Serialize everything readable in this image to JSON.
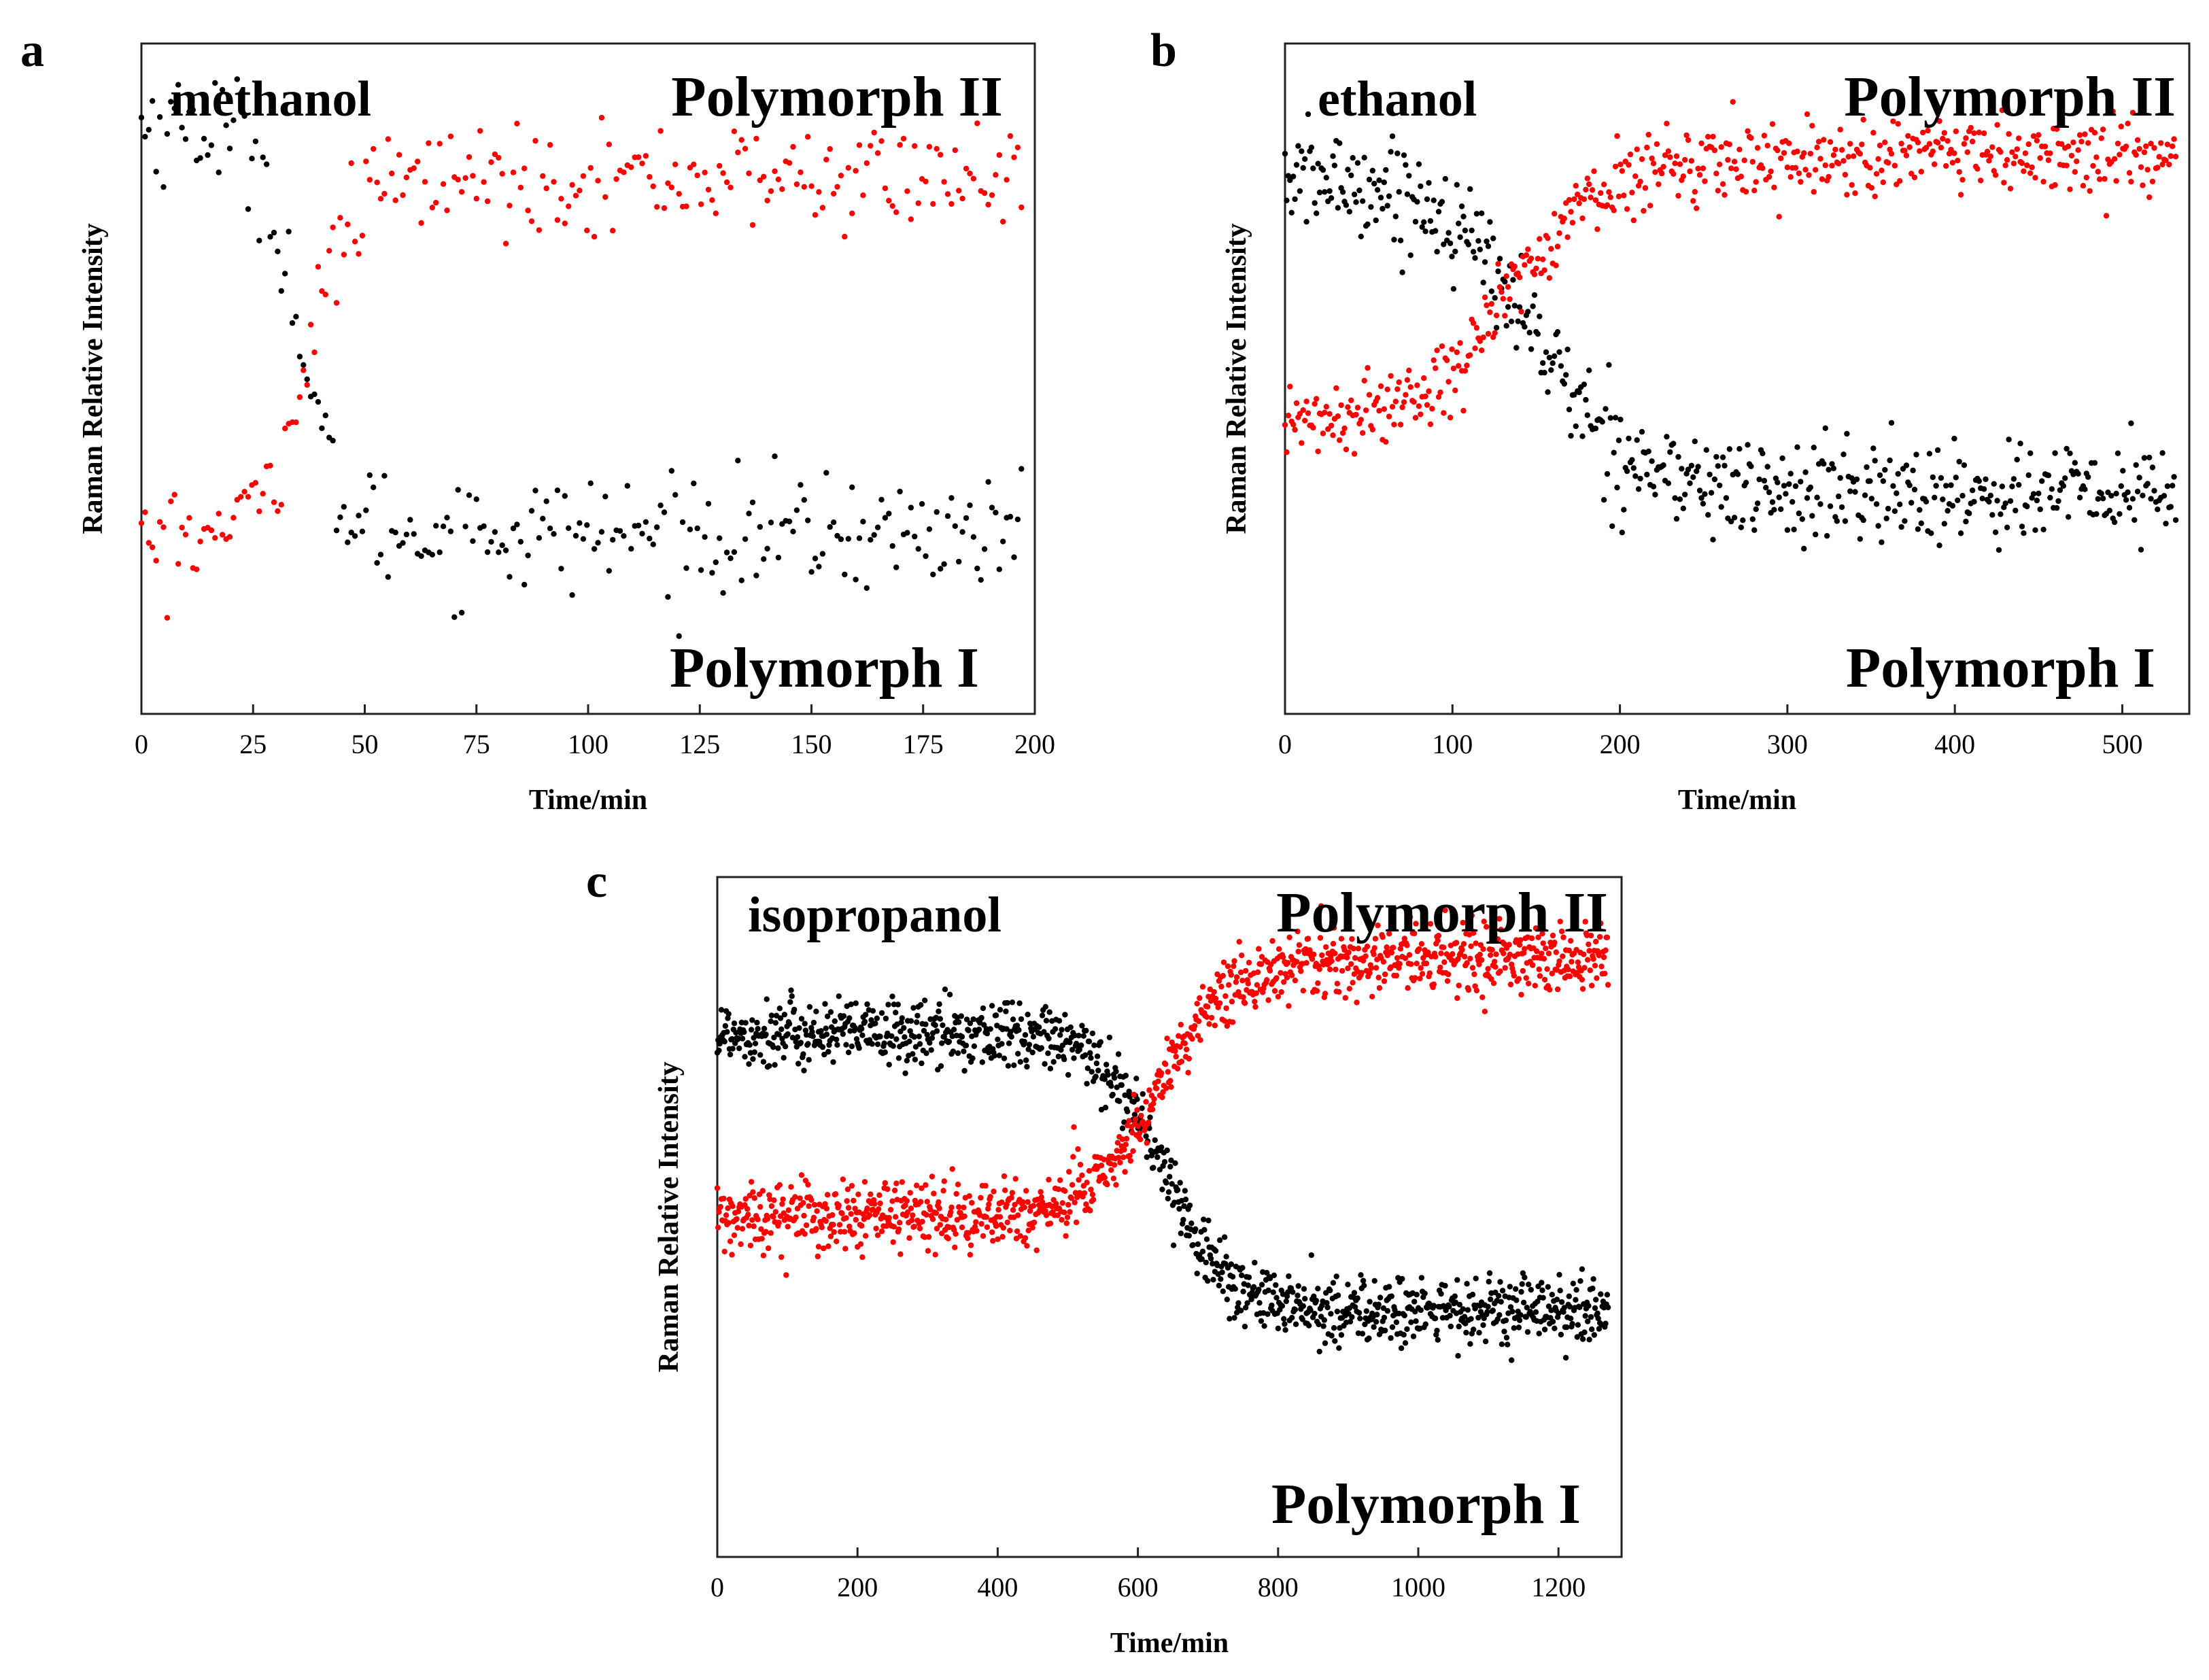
{
  "figure": {
    "panel_letters": [
      "a",
      "b",
      "c"
    ]
  },
  "chart_data": [
    {
      "type": "scatter",
      "panel": "a",
      "title": "methanol",
      "xlabel": "Time/min",
      "ylabel": "Raman Relative Intensity",
      "xlim": [
        0,
        200
      ],
      "ylim": [
        0,
        1
      ],
      "xticks": [
        0,
        25,
        50,
        75,
        100,
        125,
        150,
        175,
        200
      ],
      "yticks_shown": false,
      "annotations": [
        "Polymorph II",
        "Polymorph I"
      ],
      "n_points": 240,
      "series": [
        {
          "name": "Polymorph I",
          "color": "#000000",
          "trend": {
            "model": "sigmoid",
            "start": 0.88,
            "end": 0.27,
            "midpoint_min": 35,
            "width_min": 4,
            "noise": 0.08
          }
        },
        {
          "name": "Polymorph II",
          "color": "#ff0000",
          "trend": {
            "model": "sigmoid",
            "start": 0.26,
            "end": 0.8,
            "midpoint_min": 37,
            "width_min": 5,
            "noise": 0.07
          }
        }
      ]
    },
    {
      "type": "scatter",
      "panel": "b",
      "title": "ethanol",
      "xlabel": "Time/min",
      "ylabel": "Raman Relative Intensity",
      "xlim": [
        0,
        540
      ],
      "ylim": [
        0,
        1
      ],
      "xticks": [
        0,
        100,
        200,
        300,
        400,
        500
      ],
      "yticks_shown": false,
      "annotations": [
        "Polymorph II",
        "Polymorph I"
      ],
      "n_points": 540,
      "series": [
        {
          "name": "Polymorph I",
          "color": "#000000",
          "trend": {
            "model": "sigmoid",
            "start": 0.8,
            "end": 0.33,
            "midpoint_min": 150,
            "width_min": 28,
            "noise": 0.07
          }
        },
        {
          "name": "Polymorph II",
          "color": "#ff0000",
          "trend": {
            "model": "sigmoid",
            "start": 0.43,
            "end": 0.83,
            "midpoint_min": 135,
            "width_min": 28,
            "noise": 0.05
          }
        }
      ]
    },
    {
      "type": "scatter",
      "panel": "c",
      "title": "isopropanol",
      "xlabel": "Time/min",
      "ylabel": "Raman Relative Intensity",
      "xlim": [
        0,
        1290
      ],
      "ylim": [
        0,
        1
      ],
      "xticks": [
        0,
        200,
        400,
        600,
        800,
        1000,
        1200
      ],
      "yticks_shown": false,
      "annotations": [
        "Polymorph II",
        "Polymorph I"
      ],
      "n_points": 1100,
      "series": [
        {
          "name": "Polymorph I",
          "color": "#000000",
          "trend": {
            "model": "sigmoid",
            "start": 0.77,
            "end": 0.36,
            "midpoint_min": 640,
            "width_min": 45,
            "noise": 0.045
          }
        },
        {
          "name": "Polymorph II",
          "color": "#ff0000",
          "trend": {
            "model": "sigmoid",
            "start": 0.5,
            "end": 0.88,
            "midpoint_min": 630,
            "width_min": 50,
            "noise": 0.045
          }
        }
      ]
    }
  ]
}
